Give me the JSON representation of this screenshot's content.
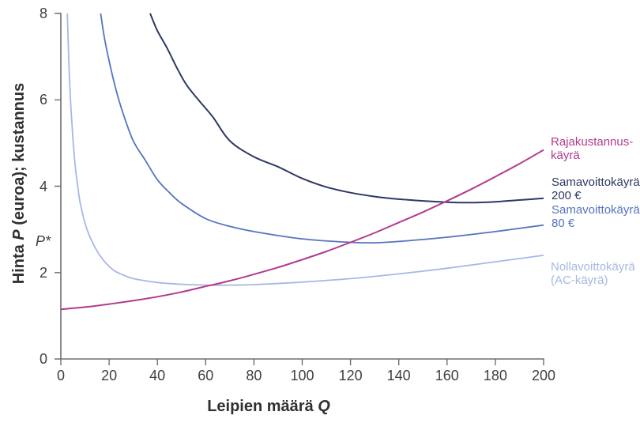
{
  "chart_data": {
    "type": "line",
    "title": "",
    "xlabel": "Leipien määrä Q",
    "ylabel": "Hinta P (euroa); kustannus",
    "xlim": [
      0,
      200
    ],
    "ylim": [
      0,
      8
    ],
    "xticks": [
      0,
      20,
      40,
      60,
      80,
      100,
      120,
      140,
      160,
      180,
      200
    ],
    "yticks": [
      0,
      2,
      4,
      6,
      8
    ],
    "y_axis_extra_labels": [
      {
        "text": "P*",
        "value": 2.73
      }
    ],
    "grid": false,
    "legend_position": "labels-right-of-plot",
    "axis_color": "#6d6e71",
    "tick_text_color": "#414042",
    "axis_title_color": "#303032",
    "series": [
      {
        "id": "nollavoittokayra",
        "name": "Nollavoittokäyrä (AC-käyrä)",
        "label_lines": [
          "Nollavoittokäyrä",
          "(AC-käyrä)"
        ],
        "color": "#a6b9e3",
        "points": [
          [
            2.7,
            8
          ],
          [
            3.3,
            6.9
          ],
          [
            4,
            6.0
          ],
          [
            5,
            5.1
          ],
          [
            6,
            4.45
          ],
          [
            7,
            4.0
          ],
          [
            8,
            3.62
          ],
          [
            10,
            3.15
          ],
          [
            12,
            2.83
          ],
          [
            15,
            2.5
          ],
          [
            18,
            2.26
          ],
          [
            22,
            2.05
          ],
          [
            26,
            1.94
          ],
          [
            30,
            1.86
          ],
          [
            40,
            1.77
          ],
          [
            50,
            1.73
          ],
          [
            60,
            1.71
          ],
          [
            70,
            1.71
          ],
          [
            80,
            1.72
          ],
          [
            100,
            1.78
          ],
          [
            120,
            1.86
          ],
          [
            140,
            1.97
          ],
          [
            160,
            2.1
          ],
          [
            180,
            2.25
          ],
          [
            200,
            2.4
          ]
        ]
      },
      {
        "id": "samavoitto80",
        "name": "Samavoittokäyrä: 80 €",
        "label_lines": [
          "Samavoittokäyrä:",
          "80 €"
        ],
        "color": "#5573c0",
        "points": [
          [
            16.5,
            8
          ],
          [
            18,
            7.45
          ],
          [
            20,
            6.9
          ],
          [
            23,
            6.2
          ],
          [
            26,
            5.65
          ],
          [
            30,
            5.05
          ],
          [
            35,
            4.6
          ],
          [
            40,
            4.15
          ],
          [
            45,
            3.85
          ],
          [
            50,
            3.6
          ],
          [
            60,
            3.25
          ],
          [
            70,
            3.07
          ],
          [
            80,
            2.95
          ],
          [
            100,
            2.78
          ],
          [
            120,
            2.7
          ],
          [
            130,
            2.69
          ],
          [
            140,
            2.72
          ],
          [
            160,
            2.82
          ],
          [
            180,
            2.95
          ],
          [
            200,
            3.1
          ]
        ]
      },
      {
        "id": "samavoitto200",
        "name": "Samavoittokäyrä: 200 €",
        "label_lines": [
          "Samavoittokäyrä:",
          "200 €"
        ],
        "color": "#2d3863",
        "points": [
          [
            37,
            8
          ],
          [
            40,
            7.6
          ],
          [
            44,
            7.2
          ],
          [
            48,
            6.75
          ],
          [
            52,
            6.35
          ],
          [
            57,
            6.0
          ],
          [
            63,
            5.6
          ],
          [
            70,
            5.05
          ],
          [
            80,
            4.68
          ],
          [
            90,
            4.45
          ],
          [
            100,
            4.18
          ],
          [
            110,
            3.98
          ],
          [
            120,
            3.85
          ],
          [
            130,
            3.76
          ],
          [
            140,
            3.7
          ],
          [
            150,
            3.66
          ],
          [
            160,
            3.63
          ],
          [
            170,
            3.62
          ],
          [
            180,
            3.64
          ],
          [
            190,
            3.68
          ],
          [
            200,
            3.72
          ]
        ]
      },
      {
        "id": "rajakustannus",
        "name": "Rajakustannuskäyrä",
        "label_lines": [
          "Rajakustannus-",
          "käyrä"
        ],
        "color": "#b23a8c",
        "points": [
          [
            0,
            1.15
          ],
          [
            10,
            1.2
          ],
          [
            20,
            1.27
          ],
          [
            30,
            1.35
          ],
          [
            40,
            1.44
          ],
          [
            50,
            1.55
          ],
          [
            60,
            1.68
          ],
          [
            70,
            1.81
          ],
          [
            80,
            1.96
          ],
          [
            90,
            2.12
          ],
          [
            100,
            2.3
          ],
          [
            110,
            2.49
          ],
          [
            120,
            2.7
          ],
          [
            130,
            2.92
          ],
          [
            140,
            3.16
          ],
          [
            150,
            3.4
          ],
          [
            160,
            3.66
          ],
          [
            170,
            3.93
          ],
          [
            180,
            4.22
          ],
          [
            190,
            4.52
          ],
          [
            200,
            4.84
          ]
        ]
      }
    ]
  }
}
